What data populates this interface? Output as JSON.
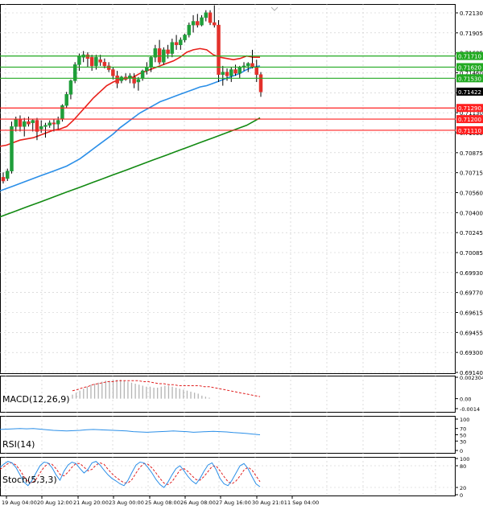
{
  "colors": {
    "background": "#ffffff",
    "grid": "#c8c8c8",
    "axis": "#000000",
    "bull": "#1f9e3a",
    "bear": "#e3312b",
    "wick": "#000000",
    "ma_fast": "#e8201a",
    "ma_mid": "#2b8fe8",
    "ma_slow": "#128a12",
    "support": "#ff2020",
    "resistance": "#22aa22",
    "price_tag": "#000000",
    "macd_hist": "#b4b4b4",
    "macd_signal": "#e02020",
    "rsi": "#2b8fe8",
    "stoch_main": "#2b8fe8",
    "stoch_signal": "#e02020"
  },
  "chart_data": [
    {
      "panel": "price",
      "type": "candlestick",
      "ylim": [
        0.6914,
        0.7213
      ],
      "y_ticks": [
        "0.72130",
        "0.71905",
        "0.71685",
        "0.71460",
        "0.71345",
        "0.71130",
        "0.71035",
        "0.70875",
        "0.70715",
        "0.70560",
        "0.70400",
        "0.70245",
        "0.70085",
        "0.69930",
        "0.69770",
        "0.69615",
        "0.69455",
        "0.69300",
        "0.69140"
      ],
      "x_ticks": [
        "19 Aug 04:00",
        "20 Aug 12:00",
        "21 Aug 20:00",
        "23 Aug 00:00",
        "25 Aug 08:00",
        "26 Aug 08:00",
        "27 Aug 16:00",
        "30 Aug 21:01",
        "1 Sep 04:00"
      ],
      "candles": [
        [
          0.7073,
          0.7077,
          0.7068,
          0.707
        ],
        [
          0.7072,
          0.708,
          0.707,
          0.7078
        ],
        [
          0.7078,
          0.7118,
          0.7076,
          0.7114
        ],
        [
          0.7114,
          0.7122,
          0.711,
          0.712
        ],
        [
          0.712,
          0.7123,
          0.711,
          0.7114
        ],
        [
          0.7114,
          0.7121,
          0.7106,
          0.7118
        ],
        [
          0.7118,
          0.7122,
          0.7114,
          0.7116
        ],
        [
          0.7117,
          0.712,
          0.711,
          0.7119
        ],
        [
          0.7119,
          0.7121,
          0.7103,
          0.711
        ],
        [
          0.7112,
          0.7119,
          0.7109,
          0.7114
        ],
        [
          0.7114,
          0.7117,
          0.7105,
          0.7115
        ],
        [
          0.7115,
          0.7119,
          0.7113,
          0.7117
        ],
        [
          0.7117,
          0.712,
          0.711,
          0.7116
        ],
        [
          0.7116,
          0.7122,
          0.7112,
          0.7119
        ],
        [
          0.712,
          0.7132,
          0.7118,
          0.7131
        ],
        [
          0.7131,
          0.7142,
          0.7129,
          0.714
        ],
        [
          0.714,
          0.7152,
          0.7136,
          0.7151
        ],
        [
          0.7151,
          0.7166,
          0.7149,
          0.7164
        ],
        [
          0.7164,
          0.7173,
          0.7159,
          0.7171
        ],
        [
          0.717,
          0.7175,
          0.7166,
          0.7172
        ],
        [
          0.7172,
          0.7174,
          0.7162,
          0.7169
        ],
        [
          0.717,
          0.7172,
          0.7159,
          0.7163
        ],
        [
          0.7163,
          0.7172,
          0.716,
          0.717
        ],
        [
          0.7168,
          0.7172,
          0.7163,
          0.7166
        ],
        [
          0.7166,
          0.7169,
          0.7161,
          0.7163
        ],
        [
          0.7163,
          0.7166,
          0.7158,
          0.716
        ],
        [
          0.716,
          0.7162,
          0.7152,
          0.7155
        ],
        [
          0.7155,
          0.7159,
          0.7145,
          0.7149
        ],
        [
          0.7151,
          0.7155,
          0.7149,
          0.7154
        ],
        [
          0.7154,
          0.7157,
          0.7151,
          0.7152
        ],
        [
          0.7153,
          0.7157,
          0.7149,
          0.7155
        ],
        [
          0.7154,
          0.7157,
          0.7145,
          0.7149
        ],
        [
          0.715,
          0.7154,
          0.7143,
          0.7152
        ],
        [
          0.7153,
          0.716,
          0.7151,
          0.7159
        ],
        [
          0.7159,
          0.7166,
          0.7156,
          0.7162
        ],
        [
          0.7162,
          0.7171,
          0.7158,
          0.717
        ],
        [
          0.717,
          0.718,
          0.7166,
          0.7177
        ],
        [
          0.7177,
          0.7184,
          0.7164,
          0.7166
        ],
        [
          0.7166,
          0.7178,
          0.7164,
          0.7176
        ],
        [
          0.7176,
          0.718,
          0.7169,
          0.7173
        ],
        [
          0.7173,
          0.7185,
          0.717,
          0.7182
        ],
        [
          0.7182,
          0.7188,
          0.7176,
          0.718
        ],
        [
          0.718,
          0.7186,
          0.7176,
          0.7184
        ],
        [
          0.7184,
          0.7189,
          0.7182,
          0.7188
        ],
        [
          0.7188,
          0.7198,
          0.7186,
          0.7196
        ],
        [
          0.7196,
          0.7204,
          0.719,
          0.7199
        ],
        [
          0.7199,
          0.7205,
          0.7194,
          0.7196
        ],
        [
          0.7196,
          0.7204,
          0.7195,
          0.7202
        ],
        [
          0.7202,
          0.7208,
          0.7199,
          0.7206
        ],
        [
          0.7206,
          0.7208,
          0.7196,
          0.7198
        ],
        [
          0.7198,
          0.7212,
          0.7194,
          0.7196
        ],
        [
          0.7196,
          0.72,
          0.715,
          0.7156
        ],
        [
          0.7156,
          0.7163,
          0.7147,
          0.7158
        ],
        [
          0.7158,
          0.7161,
          0.7151,
          0.7155
        ],
        [
          0.7155,
          0.7162,
          0.715,
          0.716
        ],
        [
          0.716,
          0.7164,
          0.7155,
          0.7157
        ],
        [
          0.7157,
          0.7163,
          0.7153,
          0.7162
        ],
        [
          0.7162,
          0.7166,
          0.7159,
          0.7163
        ],
        [
          0.7163,
          0.7166,
          0.7158,
          0.7165
        ],
        [
          0.7165,
          0.7176,
          0.7161,
          0.7162
        ],
        [
          0.7162,
          0.7168,
          0.715,
          0.7156
        ],
        [
          0.7156,
          0.7158,
          0.7138,
          0.7142
        ]
      ],
      "ma_fast": [
        0.7098,
        0.7099,
        0.7101,
        0.7103,
        0.7104,
        0.7105,
        0.7107,
        0.7109,
        0.7111,
        0.7112,
        0.7114,
        0.7119,
        0.7125,
        0.7131,
        0.7137,
        0.7142,
        0.7147,
        0.715,
        0.7152,
        0.7153,
        0.7154,
        0.7157,
        0.7159,
        0.7161,
        0.7163,
        0.7165,
        0.7167,
        0.717,
        0.7174,
        0.7176,
        0.7177,
        0.7176,
        0.7172,
        0.717,
        0.7169,
        0.7168,
        0.7169,
        0.7171,
        0.717,
        0.717
      ],
      "ma_mid": [
        0.7062,
        0.7064,
        0.7066,
        0.7068,
        0.707,
        0.7072,
        0.7074,
        0.7076,
        0.7078,
        0.708,
        0.7082,
        0.7085,
        0.7088,
        0.7092,
        0.7096,
        0.71,
        0.7104,
        0.7108,
        0.7113,
        0.7117,
        0.7121,
        0.7125,
        0.7128,
        0.7131,
        0.7134,
        0.7136,
        0.7138,
        0.714,
        0.7142,
        0.7144,
        0.7146,
        0.7147,
        0.7149,
        0.7151,
        0.7153,
        0.7155,
        0.7157,
        0.716,
        0.7162,
        0.7163
      ],
      "ma_slow": [
        0.7041,
        0.7043,
        0.7045,
        0.7047,
        0.7049,
        0.7051,
        0.7053,
        0.7055,
        0.7057,
        0.7059,
        0.7061,
        0.7063,
        0.7065,
        0.7067,
        0.7069,
        0.7071,
        0.7073,
        0.7075,
        0.7077,
        0.7079,
        0.7081,
        0.7083,
        0.7085,
        0.7087,
        0.7089,
        0.7091,
        0.7093,
        0.7095,
        0.7097,
        0.7099,
        0.7101,
        0.7103,
        0.7105,
        0.7107,
        0.7109,
        0.7111,
        0.7113,
        0.7115,
        0.7118,
        0.7121
      ],
      "levels": [
        {
          "value": 0.7171,
          "label": "0.71710",
          "kind": "resistance"
        },
        {
          "value": 0.7162,
          "label": "0.71620",
          "kind": "resistance"
        },
        {
          "value": 0.7153,
          "label": "0.71530",
          "kind": "resistance"
        },
        {
          "value": 0.7129,
          "label": "0.71290",
          "kind": "support"
        },
        {
          "value": 0.712,
          "label": "0.71200",
          "kind": "support"
        },
        {
          "value": 0.7111,
          "label": "0.71110",
          "kind": "support"
        }
      ],
      "last_price": {
        "value": 0.71422,
        "label": "0.71422"
      }
    },
    {
      "panel": "macd",
      "type": "histogram",
      "title": "MACD(12,26,9)",
      "ylim": [
        -0.0014,
        0.002304
      ],
      "y_ticks": [
        "0.002304",
        "0.00",
        "-0.0014"
      ],
      "histogram": [
        0.0004,
        0.0006,
        0.0008,
        0.001,
        0.0012,
        0.0014,
        0.0015,
        0.0016,
        0.0017,
        0.0018,
        0.0018,
        0.0019,
        0.0019,
        0.0019,
        0.0018,
        0.0017,
        0.0016,
        0.0015,
        0.0014,
        0.0013,
        0.0012,
        0.0012,
        0.0011,
        0.0011,
        0.0012,
        0.0013,
        0.0013,
        0.0012,
        0.0011,
        0.001,
        0.0009,
        0.0008,
        0.0007,
        0.0006,
        0.0005,
        0.0003,
        0.0002,
        0.0001
      ],
      "signal": [
        0.0008,
        0.0009,
        0.0011,
        0.0012,
        0.0014,
        0.0015,
        0.0016,
        0.0017,
        0.0017,
        0.0018,
        0.0018,
        0.0018,
        0.0018,
        0.0018,
        0.0017,
        0.0017,
        0.0016,
        0.0015,
        0.0015,
        0.0014,
        0.0014,
        0.0013,
        0.0013,
        0.0013,
        0.0013,
        0.0013,
        0.0012,
        0.0012,
        0.0011,
        0.001,
        0.0009,
        0.0008,
        0.0007,
        0.0006,
        0.0005,
        0.0004,
        0.0003,
        0.0002
      ]
    },
    {
      "panel": "rsi",
      "type": "line",
      "title": "RSI(14)",
      "ylim": [
        0,
        100
      ],
      "y_ticks": [
        "100",
        "70",
        "50",
        "30",
        "0"
      ],
      "values": [
        67,
        68,
        69,
        70,
        69,
        70,
        68,
        66,
        64,
        63,
        62,
        63,
        64,
        66,
        67,
        66,
        65,
        64,
        63,
        62,
        60,
        59,
        58,
        59,
        60,
        61,
        62,
        61,
        60,
        58,
        59,
        60,
        61,
        60,
        59,
        57,
        56,
        54,
        52,
        50
      ]
    },
    {
      "panel": "stoch",
      "type": "line",
      "title": "Stoch(5,3,3)",
      "ylim": [
        0,
        100
      ],
      "y_ticks": [
        "100",
        "80",
        "20",
        "0"
      ],
      "main": [
        75,
        85,
        92,
        88,
        75,
        55,
        35,
        25,
        40,
        60,
        80,
        90,
        88,
        75,
        55,
        40,
        65,
        82,
        90,
        86,
        72,
        60,
        70,
        88,
        92,
        82,
        68,
        55,
        45,
        38,
        30,
        25,
        40,
        62,
        82,
        90,
        88,
        75,
        60,
        42,
        28,
        20,
        35,
        55,
        72,
        80,
        66,
        50,
        38,
        30,
        45,
        65,
        82,
        88,
        70,
        45,
        30,
        25,
        40,
        60,
        80,
        86,
        72,
        50,
        30,
        22
      ],
      "signal": [
        70,
        78,
        86,
        88,
        82,
        68,
        50,
        36,
        32,
        42,
        60,
        76,
        86,
        84,
        72,
        56,
        52,
        62,
        76,
        86,
        86,
        76,
        66,
        70,
        82,
        88,
        84,
        70,
        58,
        48,
        40,
        33,
        32,
        42,
        60,
        76,
        86,
        84,
        74,
        60,
        45,
        32,
        28,
        36,
        52,
        68,
        72,
        64,
        52,
        42,
        40,
        50,
        64,
        78,
        80,
        66,
        50,
        36,
        30,
        38,
        52,
        68,
        76,
        68,
        52,
        36
      ]
    }
  ]
}
